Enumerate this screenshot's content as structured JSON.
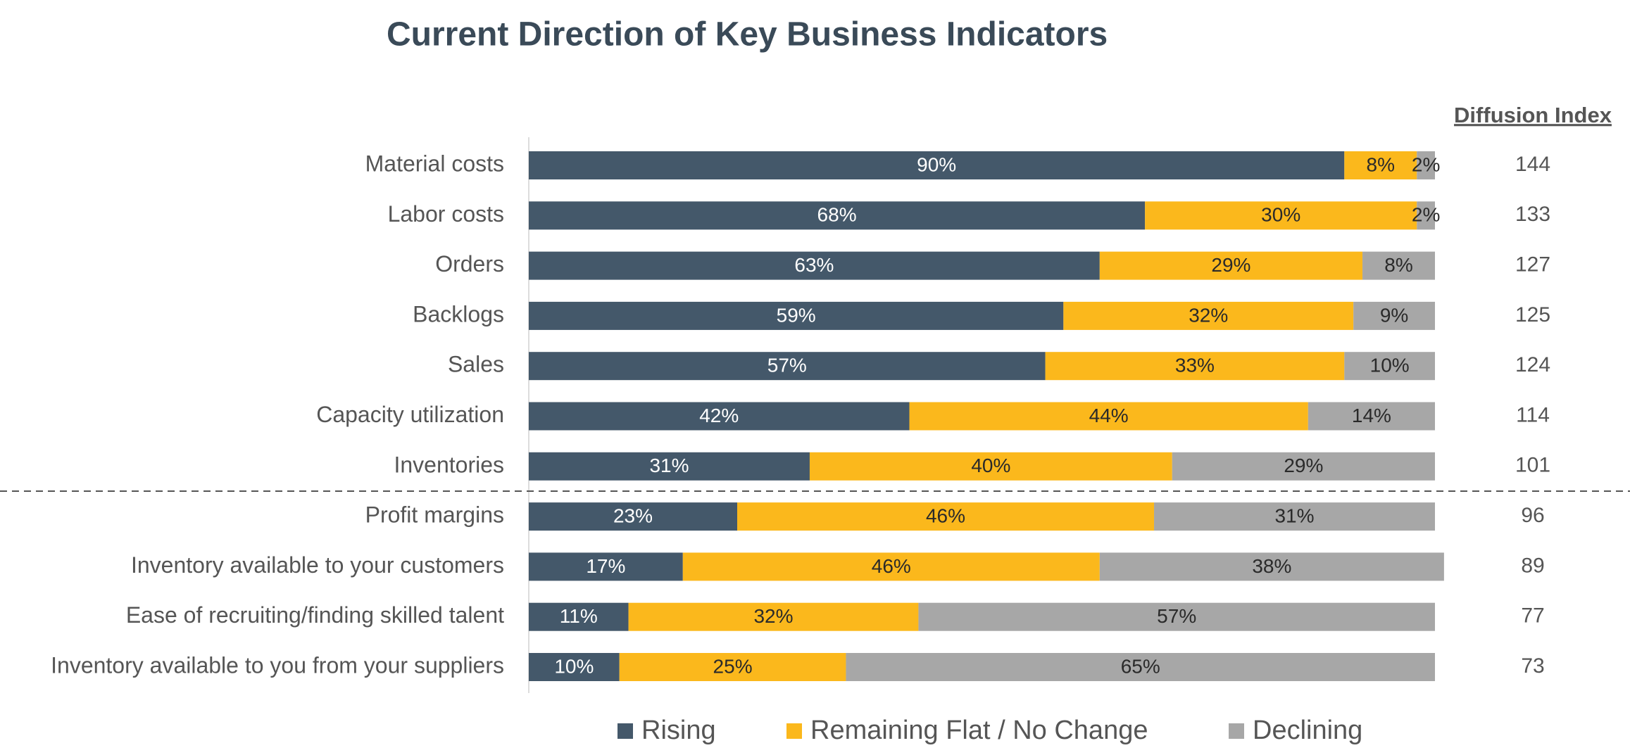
{
  "chart_data": {
    "type": "stacked_bar_horizontal",
    "title": "Current Direction of Key Business Indicators",
    "categories": [
      "Material costs",
      "Labor costs",
      "Orders",
      "Backlogs",
      "Sales",
      "Capacity utilization",
      "Inventories",
      "Profit margins",
      "Inventory available to your customers",
      "Ease of recruiting/finding skilled talent",
      "Inventory available to you from your suppliers"
    ],
    "series": [
      {
        "name": "Rising",
        "color": "#44586a",
        "values": [
          90,
          68,
          63,
          59,
          57,
          42,
          31,
          23,
          17,
          11,
          10
        ],
        "value_labels": [
          "90%",
          "68%",
          "63%",
          "59%",
          "57%",
          "42%",
          "31%",
          "23%",
          "17%",
          "11%",
          "10%"
        ]
      },
      {
        "name": "Remaining Flat / No Change",
        "color": "#fbb81c",
        "values": [
          8,
          30,
          29,
          32,
          33,
          44,
          40,
          46,
          46,
          32,
          25
        ],
        "value_labels": [
          "8%",
          "30%",
          "29%",
          "32%",
          "33%",
          "44%",
          "40%",
          "46%",
          "46%",
          "32%",
          "25%"
        ]
      },
      {
        "name": "Declining",
        "color": "#a7a7a7",
        "values": [
          2,
          2,
          8,
          9,
          10,
          14,
          29,
          31,
          38,
          57,
          65
        ],
        "value_labels": [
          "2%",
          "2%",
          "8%",
          "9%",
          "10%",
          "14%",
          "29%",
          "31%",
          "38%",
          "57%",
          "65%"
        ]
      }
    ],
    "xlim": [
      0,
      100
    ],
    "diffusion_index_title": "Diffusion Index",
    "diffusion_index": [
      144,
      133,
      127,
      125,
      124,
      114,
      101,
      96,
      89,
      77,
      73
    ]
  }
}
